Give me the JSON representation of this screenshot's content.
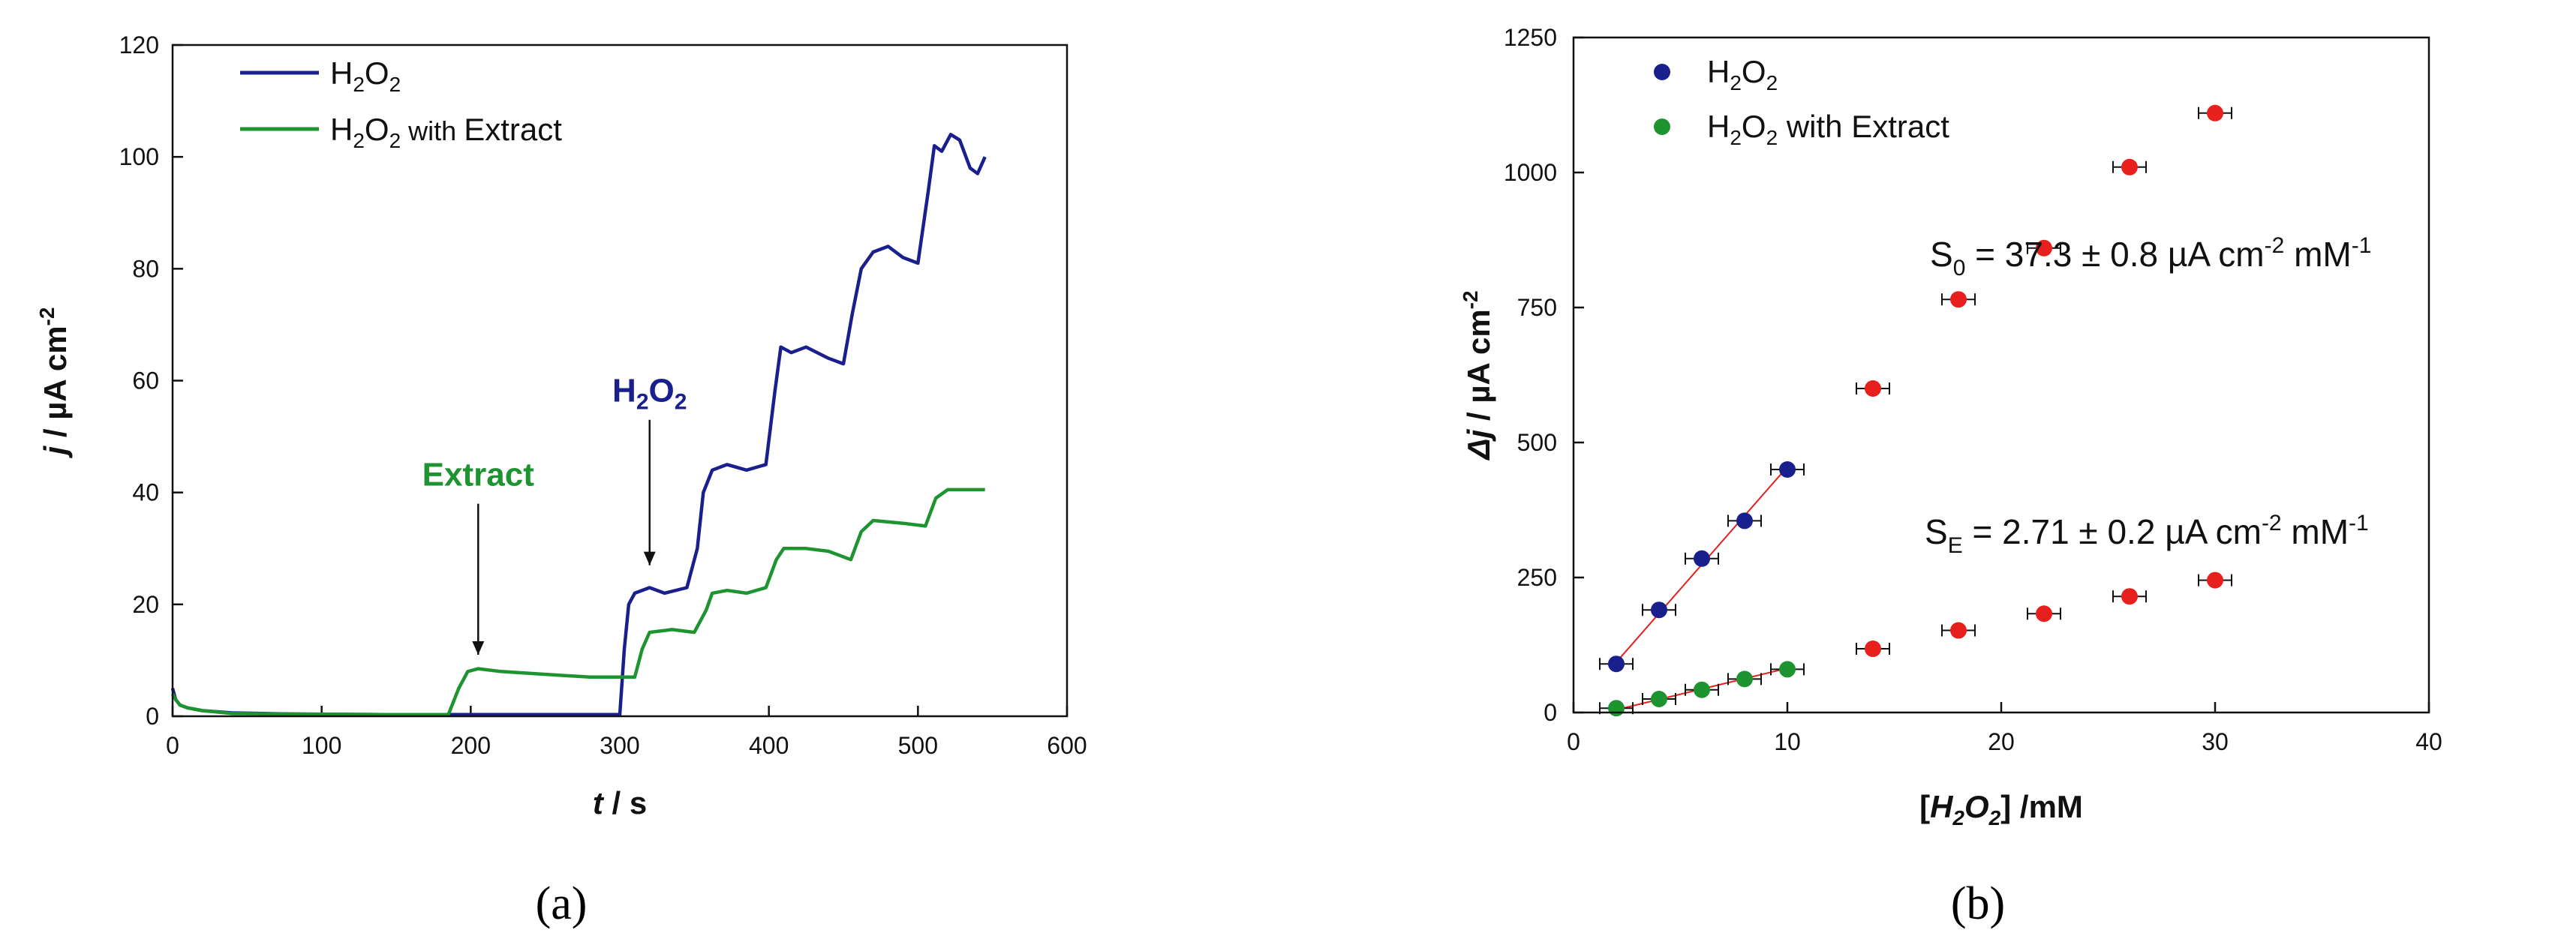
{
  "chart_data": [
    {
      "panel_label": "(a)",
      "type": "line",
      "xlabel": "t / s",
      "ylabel": "j / µA cm-2",
      "xlim": [
        0,
        600
      ],
      "ylim": [
        0,
        120
      ],
      "xticks": [
        0,
        100,
        200,
        300,
        400,
        500,
        600
      ],
      "yticks": [
        0,
        20,
        40,
        60,
        80,
        100,
        120
      ],
      "grid": false,
      "legend_position": "top-left",
      "series": [
        {
          "name": "H2O2",
          "color": "#1a1f8e",
          "x": [
            0,
            2,
            5,
            10,
            20,
            40,
            80,
            140,
            200,
            250,
            300,
            303,
            306,
            310,
            320,
            330,
            345,
            352,
            356,
            362,
            372,
            385,
            398,
            404,
            408,
            415,
            425,
            440,
            450,
            456,
            462,
            470,
            480,
            490,
            500,
            507,
            511,
            516,
            522,
            528,
            535,
            540,
            545
          ],
          "y": [
            5,
            3,
            2,
            1.5,
            1,
            0.6,
            0.4,
            0.3,
            0.3,
            0.3,
            0.3,
            12,
            20,
            22,
            23,
            22,
            23,
            30,
            40,
            44,
            45,
            44,
            45,
            58,
            66,
            65,
            66,
            64,
            63,
            72,
            80,
            83,
            84,
            82,
            81,
            94,
            102,
            101,
            104,
            103,
            98,
            97,
            100
          ]
        },
        {
          "name": "H2O2 with Extract",
          "color": "#1e9430",
          "x": [
            0,
            2,
            5,
            10,
            20,
            40,
            80,
            140,
            185,
            192,
            198,
            205,
            220,
            250,
            280,
            300,
            310,
            315,
            320,
            335,
            350,
            358,
            362,
            372,
            385,
            398,
            405,
            410,
            425,
            440,
            455,
            462,
            470,
            490,
            505,
            512,
            520,
            535,
            545
          ],
          "y": [
            4,
            3,
            2,
            1.5,
            1,
            0.5,
            0.4,
            0.3,
            0.3,
            5,
            8,
            8.5,
            8,
            7.5,
            7,
            7,
            7,
            12,
            15,
            15.5,
            15,
            19,
            22,
            22.5,
            22,
            23,
            28,
            30,
            30,
            29.5,
            28,
            33,
            35,
            34.5,
            34,
            39,
            40.5,
            40.5,
            40.5
          ]
        }
      ],
      "annotations": [
        {
          "text": "Extract",
          "color": "#1e9430",
          "arrow_x": 205,
          "arrow_from_y": 38,
          "arrow_to_y": 11
        },
        {
          "text": "H2O2",
          "color": "#1a1f8e",
          "arrow_x": 320,
          "arrow_from_y": 53,
          "arrow_to_y": 27
        }
      ]
    },
    {
      "panel_label": "(b)",
      "type": "scatter",
      "xlabel": "[H2O2] /mM",
      "ylabel": "Δj / µA cm-2",
      "xlim": [
        0,
        40
      ],
      "ylim": [
        0,
        1250
      ],
      "xticks": [
        0,
        10,
        20,
        30,
        40
      ],
      "yticks": [
        0,
        250,
        500,
        750,
        1000,
        1250
      ],
      "grid": false,
      "legend_position": "top-left",
      "series": [
        {
          "name": "H2O2",
          "color": "#1a1f8e",
          "x": [
            2,
            4,
            6,
            8,
            10
          ],
          "y": [
            90,
            190,
            285,
            355,
            450
          ]
        },
        {
          "name": "H2O2 with Extract",
          "color": "#1e9430",
          "x": [
            2,
            4,
            6,
            8,
            10
          ],
          "y": [
            8,
            25,
            42,
            62,
            80
          ]
        },
        {
          "name": "",
          "color": "#e8201d",
          "x": [
            14,
            18,
            22,
            26,
            30
          ],
          "y": [
            600,
            765,
            860,
            1010,
            1110
          ]
        },
        {
          "name": "",
          "color": "#e8201d",
          "x": [
            14,
            18,
            22,
            26,
            30
          ],
          "y": [
            118,
            152,
            183,
            215,
            245
          ]
        }
      ],
      "fits": [
        {
          "color": "#e8201d",
          "x": [
            2,
            10
          ],
          "y": [
            93,
            455
          ]
        },
        {
          "color": "#e8201d",
          "x": [
            2,
            10
          ],
          "y": [
            5,
            82
          ]
        }
      ],
      "equations": [
        {
          "sym": "S",
          "sub": "0",
          "rest": " = 37.3 ± 0.8 µA cm",
          "sup1": "-2",
          "unit": " mM",
          "sup2": "-1"
        },
        {
          "sym": "S",
          "sub": "E",
          "rest": " = 2.71 ± 0.2 µA cm",
          "sup1": "-2",
          "unit": " mM",
          "sup2": "-1"
        }
      ]
    }
  ]
}
